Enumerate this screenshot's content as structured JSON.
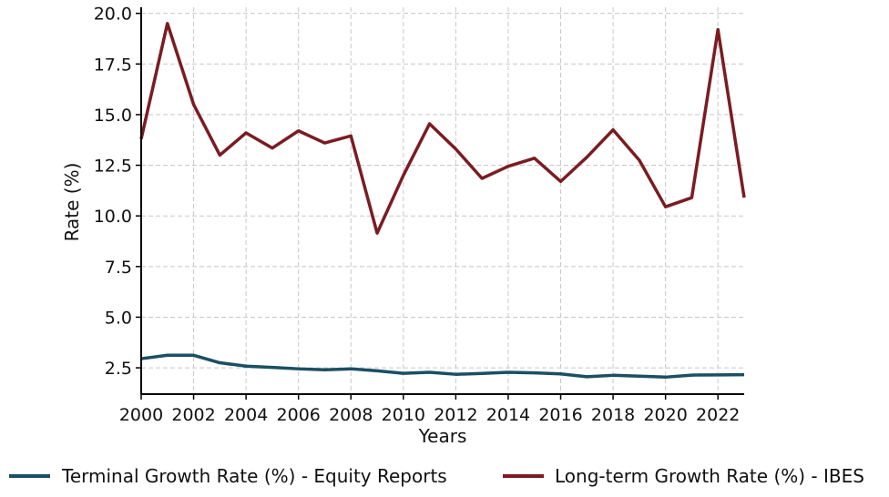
{
  "chart_data": {
    "type": "line",
    "xlabel": "Years",
    "ylabel": "Rate (%)",
    "xlim": [
      2000,
      2023
    ],
    "ylim": [
      1.2,
      20.3
    ],
    "x_ticks": [
      2000,
      2002,
      2004,
      2006,
      2008,
      2010,
      2012,
      2014,
      2016,
      2018,
      2020,
      2022
    ],
    "x_tick_labels": [
      "2000",
      "2002",
      "2004",
      "2006",
      "2008",
      "2010",
      "2012",
      "2014",
      "2016",
      "2018",
      "2020",
      "2022"
    ],
    "y_ticks": [
      2.5,
      5.0,
      7.5,
      10.0,
      12.5,
      15.0,
      17.5,
      20.0
    ],
    "y_tick_labels": [
      "2.5",
      "5.0",
      "7.5",
      "10.0",
      "12.5",
      "15.0",
      "17.5",
      "20.0"
    ],
    "grid": true,
    "legend_position": "bottom",
    "x": [
      2000,
      2001,
      2002,
      2003,
      2004,
      2005,
      2006,
      2007,
      2008,
      2009,
      2010,
      2011,
      2012,
      2013,
      2014,
      2015,
      2016,
      2017,
      2018,
      2019,
      2020,
      2021,
      2022,
      2023
    ],
    "series": [
      {
        "name": "Terminal Growth Rate (%) - Equity Reports",
        "color": "#1b4f63",
        "values": [
          2.95,
          3.12,
          3.12,
          2.75,
          2.58,
          2.52,
          2.45,
          2.4,
          2.45,
          2.35,
          2.23,
          2.28,
          2.18,
          2.22,
          2.28,
          2.25,
          2.2,
          2.06,
          2.13,
          2.09,
          2.04,
          2.14,
          2.15,
          2.16
        ]
      },
      {
        "name": "Long-term Growth Rate (%) - IBES",
        "color": "#7a1c22",
        "values": [
          13.8,
          19.5,
          15.5,
          13.0,
          14.1,
          13.35,
          14.2,
          13.6,
          13.95,
          9.15,
          12.0,
          14.55,
          13.3,
          11.85,
          12.45,
          12.85,
          11.7,
          12.9,
          14.25,
          12.75,
          10.45,
          10.9,
          19.2,
          10.9
        ]
      }
    ]
  }
}
